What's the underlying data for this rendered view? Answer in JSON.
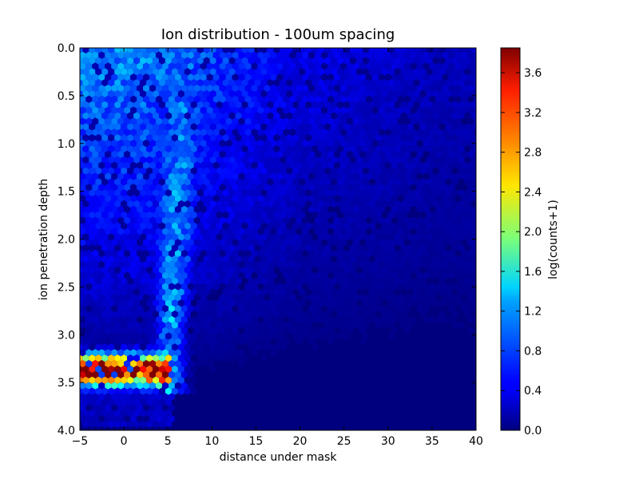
{
  "chart_data": {
    "type": "heatmap",
    "subtype": "hexbin",
    "title": "Ion distribution - 100um spacing",
    "xlabel": "distance under mask",
    "ylabel": "ion penetration depth",
    "xlim": [
      -5,
      40
    ],
    "ylim": [
      4.0,
      0.0
    ],
    "y_inverted": true,
    "x_ticks": [
      "−5",
      "0",
      "5",
      "10",
      "15",
      "20",
      "25",
      "30",
      "35",
      "40"
    ],
    "x_tick_values": [
      -5,
      0,
      5,
      10,
      15,
      20,
      25,
      30,
      35,
      40
    ],
    "y_ticks": [
      "0.0",
      "0.5",
      "1.0",
      "1.5",
      "2.0",
      "2.5",
      "3.0",
      "3.5",
      "4.0"
    ],
    "y_tick_values": [
      0.0,
      0.5,
      1.0,
      1.5,
      2.0,
      2.5,
      3.0,
      3.5,
      4.0
    ],
    "colormap": "jet",
    "colorbar": {
      "label": "log(counts+1)",
      "range": [
        0.0,
        3.85
      ],
      "ticks": [
        "0.0",
        "0.4",
        "0.8",
        "1.2",
        "1.6",
        "2.0",
        "2.4",
        "2.8",
        "3.2",
        "3.6"
      ],
      "tick_values": [
        0.0,
        0.4,
        0.8,
        1.2,
        1.6,
        2.0,
        2.4,
        2.8,
        3.2,
        3.6
      ]
    },
    "grid": false,
    "features": {
      "hot_band": {
        "x_range": [
          -5,
          5.5
        ],
        "depth_center": 3.37,
        "peak_value": 3.85
      },
      "plume": {
        "x_center_near_surface": 7,
        "x_center_at_depth_3": 5.3,
        "peak_value": 1.5
      },
      "background_near_surface": 0.6,
      "empty_region": {
        "x_min": 5.5,
        "depth_min": 3.95
      }
    }
  }
}
